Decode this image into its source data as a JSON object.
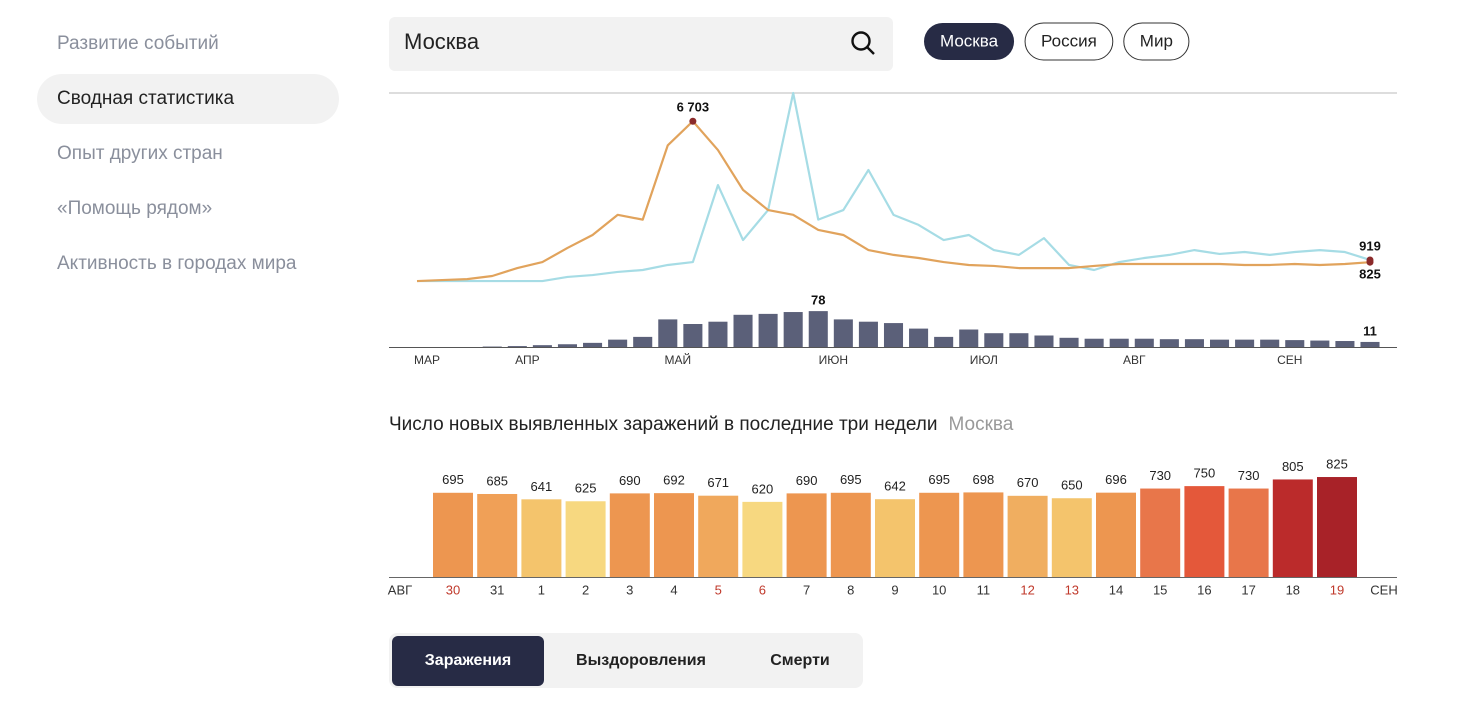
{
  "nav": {
    "items": [
      "Развитие событий",
      "Сводная статистика",
      "Опыт других стран",
      "«Помощь рядом»",
      "Активность в городах мира"
    ],
    "active": 1
  },
  "search": {
    "value": "Москва"
  },
  "regions": {
    "items": [
      "Москва",
      "Россия",
      "Мир"
    ],
    "active": 0
  },
  "chart_data": [
    {
      "type": "line",
      "xlim": [
        0,
        38
      ],
      "xticks": [
        {
          "value": 0.4,
          "label": "МАР"
        },
        {
          "value": 4.4,
          "label": "АПР"
        },
        {
          "value": 10.4,
          "label": "МАЙ"
        },
        {
          "value": 16.6,
          "label": "ИЮН"
        },
        {
          "value": 22.6,
          "label": "ИЮЛ"
        },
        {
          "value": 28.6,
          "label": "АВГ"
        },
        {
          "value": 34.8,
          "label": "СЕН"
        }
      ],
      "ylim": [
        0,
        7880
      ],
      "y2lim": [
        0,
        100
      ],
      "series": [
        {
          "type": "line",
          "color": "#e1a35c",
          "values": [
            40,
            80,
            120,
            250,
            580,
            830,
            1420,
            1960,
            2800,
            2600,
            5700,
            6703,
            5500,
            3840,
            3000,
            2800,
            2170,
            1960,
            1330,
            1130,
            1000,
            830,
            710,
            670,
            580,
            580,
            580,
            670,
            750,
            750,
            750,
            750,
            750,
            710,
            710,
            750,
            710,
            750,
            825
          ],
          "value_labels": [
            null,
            null,
            null,
            null,
            null,
            null,
            null,
            null,
            null,
            null,
            null,
            "6 703",
            null,
            null,
            null,
            null,
            null,
            null,
            null,
            null,
            null,
            null,
            null,
            null,
            null,
            null,
            null,
            null,
            null,
            null,
            null,
            null,
            null,
            null,
            null,
            null,
            null,
            null,
            "825"
          ]
        },
        {
          "type": "line",
          "color": "#a6dce5",
          "values": [
            40,
            40,
            40,
            40,
            40,
            40,
            210,
            290,
            420,
            500,
            710,
            830,
            4040,
            1750,
            3000,
            7880,
            2600,
            3000,
            4670,
            2800,
            2380,
            1750,
            1960,
            1330,
            1130,
            1830,
            710,
            500,
            830,
            1000,
            1130,
            1330,
            1170,
            1250,
            1130,
            1250,
            1330,
            1250,
            919
          ],
          "value_labels": [
            null,
            null,
            null,
            null,
            null,
            null,
            null,
            null,
            null,
            null,
            null,
            null,
            null,
            null,
            null,
            null,
            null,
            null,
            null,
            null,
            null,
            null,
            null,
            null,
            null,
            null,
            null,
            null,
            null,
            null,
            null,
            null,
            null,
            null,
            null,
            null,
            null,
            null,
            "919"
          ]
        },
        {
          "type": "bar",
          "axis": "y2",
          "color": "#5b6079",
          "values": [
            0,
            0,
            0,
            1,
            2,
            4,
            6,
            9,
            16,
            22,
            60,
            50,
            55,
            70,
            72,
            76,
            78,
            60,
            55,
            52,
            40,
            22,
            38,
            30,
            30,
            25,
            20,
            18,
            18,
            18,
            17,
            17,
            16,
            16,
            16,
            15,
            14,
            13,
            11
          ],
          "value_labels": [
            null,
            null,
            null,
            null,
            null,
            null,
            null,
            null,
            null,
            null,
            null,
            null,
            null,
            null,
            null,
            null,
            "78",
            null,
            null,
            null,
            null,
            null,
            null,
            null,
            null,
            null,
            null,
            null,
            null,
            null,
            null,
            null,
            null,
            null,
            null,
            null,
            null,
            null,
            "11"
          ]
        }
      ]
    },
    {
      "type": "bar",
      "title": "Число новых выявленных заражений в последние три недели",
      "subtitle": "Москва",
      "edge_labels": [
        "АВГ",
        "СЕН"
      ],
      "categories": [
        "30",
        "31",
        "1",
        "2",
        "3",
        "4",
        "5",
        "6",
        "7",
        "8",
        "9",
        "10",
        "11",
        "12",
        "13",
        "14",
        "15",
        "16",
        "17",
        "18",
        "19"
      ],
      "values": [
        695,
        685,
        641,
        625,
        690,
        692,
        671,
        620,
        690,
        695,
        642,
        695,
        698,
        670,
        650,
        696,
        730,
        750,
        730,
        805,
        825
      ],
      "colors": [
        "#ed9650",
        "#f0a057",
        "#f4c46c",
        "#f7d880",
        "#ed9650",
        "#ed9650",
        "#f0a85c",
        "#f7d880",
        "#ed9650",
        "#ed9650",
        "#f4c46c",
        "#ed9650",
        "#ed9650",
        "#f0ae60",
        "#f4c46c",
        "#ed9650",
        "#e8764a",
        "#e4583a",
        "#e8764a",
        "#bb2b2b",
        "#a82228"
      ],
      "tick_label_colors": [
        "#c0392b",
        "#333333",
        "#333333",
        "#333333",
        "#333333",
        "#333333",
        "#c0392b",
        "#c0392b",
        "#333333",
        "#333333",
        "#333333",
        "#333333",
        "#333333",
        "#c0392b",
        "#c0392b",
        "#333333",
        "#333333",
        "#333333",
        "#333333",
        "#333333",
        "#c0392b"
      ],
      "ylim": [
        0,
        850
      ]
    }
  ],
  "tabs": {
    "items": [
      "Заражения",
      "Выздоровления",
      "Смерти"
    ],
    "active": 0
  }
}
